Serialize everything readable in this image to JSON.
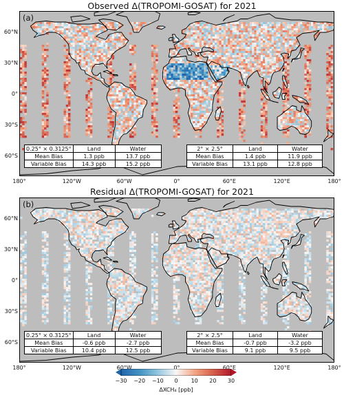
{
  "panels": [
    {
      "label": "(a)",
      "title": "Observed Δ(TROPOMI-GOSAT) for 2021",
      "tables": [
        {
          "header": [
            "0.25° × 0.3125°",
            "Land",
            "Water"
          ],
          "rows": [
            [
              "Mean Bias",
              "1.3 ppb",
              "13.7 ppb"
            ],
            [
              "Variable Bias",
              "14.3 ppb",
              "15.2 ppb"
            ]
          ]
        },
        {
          "header": [
            "2° × 2.5°",
            "Land",
            "Water"
          ],
          "rows": [
            [
              "Mean Bias",
              "1.4 ppb",
              "11.9 ppb"
            ],
            [
              "Variable Bias",
              "13.1 ppb",
              "12.8 ppb"
            ]
          ]
        }
      ]
    },
    {
      "label": "(b)",
      "title": "Residual Δ(TROPOMI-GOSAT) for 2021",
      "tables": [
        {
          "header": [
            "0.25° × 0.3125°",
            "Land",
            "Water"
          ],
          "rows": [
            [
              "Mean Bias",
              "-0.6 ppb",
              "-2.7 ppb"
            ],
            [
              "Variable Bias",
              "10.4 ppb",
              "12.5 ppb"
            ]
          ]
        },
        {
          "header": [
            "2° × 2.5°",
            "Land",
            "Water"
          ],
          "rows": [
            [
              "Mean Bias",
              "-0.7 ppb",
              "-3.2 ppb"
            ],
            [
              "Variable Bias",
              "9.1 ppb",
              "9.5 ppb"
            ]
          ]
        }
      ]
    }
  ],
  "lat_ticks": [
    "60°N",
    "30°N",
    "0°",
    "30°S",
    "60°S"
  ],
  "lon_ticks": [
    "180°",
    "120°W",
    "60°W",
    "0°",
    "60°E",
    "120°E",
    "180°"
  ],
  "colorbar": {
    "ticks": [
      "−30",
      "−20",
      "−10",
      "0",
      "10",
      "20",
      "30"
    ],
    "label": "ΔXCH₄ [ppb]",
    "range": [
      -30,
      30
    ],
    "colormap": "RdBu_r",
    "low_color": "#2166ac",
    "mid_color": "#f7f7f7",
    "high_color": "#b2182b"
  },
  "colors": {
    "ocean_land_background": "#bdbdbd",
    "coastline": "#000000"
  }
}
